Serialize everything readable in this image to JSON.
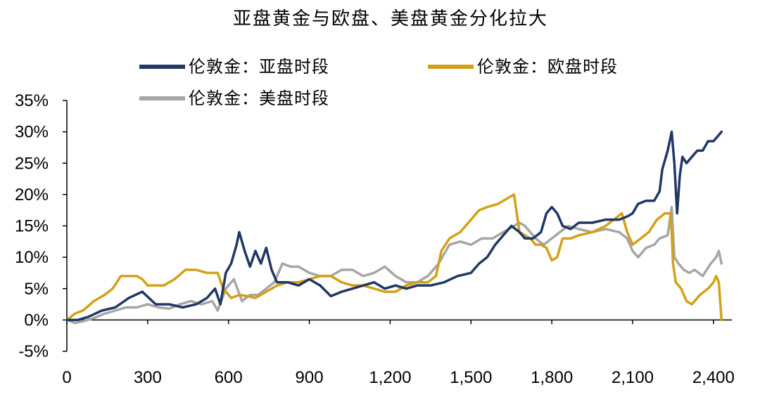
{
  "chart_data": {
    "type": "line",
    "title": "亚盘黄金与欧盘、美盘黄金分化拉大",
    "xlabel": "",
    "ylabel": "",
    "xlim": [
      0,
      2450
    ],
    "ylim": [
      -5,
      35
    ],
    "x_ticks": [
      {
        "value": 0,
        "label": "0"
      },
      {
        "value": 300,
        "label": "300"
      },
      {
        "value": 600,
        "label": "600"
      },
      {
        "value": 900,
        "label": "900"
      },
      {
        "value": 1200,
        "label": "1,200"
      },
      {
        "value": 1500,
        "label": "1,500"
      },
      {
        "value": 1800,
        "label": "1,800"
      },
      {
        "value": 2100,
        "label": "2,100"
      },
      {
        "value": 2400,
        "label": "2,400"
      }
    ],
    "y_ticks": [
      {
        "value": 35,
        "label": "35%"
      },
      {
        "value": 30,
        "label": "30%"
      },
      {
        "value": 25,
        "label": "25%"
      },
      {
        "value": 20,
        "label": "20%"
      },
      {
        "value": 15,
        "label": "15%"
      },
      {
        "value": 10,
        "label": "10%"
      },
      {
        "value": 5,
        "label": "5%"
      },
      {
        "value": 0,
        "label": "0%"
      },
      {
        "value": -5,
        "label": "-5%"
      }
    ],
    "grid": false,
    "legend_position": "top",
    "series": [
      {
        "name": "伦敦金：亚盘时段",
        "color": "#1f3864",
        "points": [
          [
            0,
            0
          ],
          [
            40,
            0
          ],
          [
            80,
            0.5
          ],
          [
            130,
            1.5
          ],
          [
            180,
            2
          ],
          [
            230,
            3.5
          ],
          [
            280,
            4.5
          ],
          [
            330,
            2.5
          ],
          [
            380,
            2.5
          ],
          [
            430,
            2
          ],
          [
            480,
            2.5
          ],
          [
            520,
            3.5
          ],
          [
            550,
            5
          ],
          [
            570,
            2.5
          ],
          [
            590,
            7.5
          ],
          [
            610,
            9
          ],
          [
            630,
            12
          ],
          [
            640,
            14
          ],
          [
            660,
            11
          ],
          [
            680,
            8.5
          ],
          [
            700,
            11
          ],
          [
            720,
            9
          ],
          [
            740,
            11.5
          ],
          [
            760,
            8
          ],
          [
            780,
            6
          ],
          [
            820,
            6
          ],
          [
            860,
            5.5
          ],
          [
            900,
            6.5
          ],
          [
            940,
            5.5
          ],
          [
            980,
            3.8
          ],
          [
            1020,
            4.5
          ],
          [
            1060,
            5
          ],
          [
            1100,
            5.5
          ],
          [
            1140,
            6
          ],
          [
            1180,
            5
          ],
          [
            1220,
            5.5
          ],
          [
            1260,
            5
          ],
          [
            1300,
            5.5
          ],
          [
            1350,
            5.5
          ],
          [
            1400,
            6
          ],
          [
            1450,
            7
          ],
          [
            1500,
            7.5
          ],
          [
            1530,
            9
          ],
          [
            1560,
            10
          ],
          [
            1590,
            12
          ],
          [
            1620,
            13.5
          ],
          [
            1650,
            15
          ],
          [
            1680,
            14
          ],
          [
            1700,
            13
          ],
          [
            1730,
            13
          ],
          [
            1760,
            14
          ],
          [
            1780,
            17
          ],
          [
            1800,
            18
          ],
          [
            1820,
            17
          ],
          [
            1840,
            15
          ],
          [
            1870,
            14.5
          ],
          [
            1900,
            15.5
          ],
          [
            1950,
            15.5
          ],
          [
            2000,
            16
          ],
          [
            2050,
            16
          ],
          [
            2080,
            16.5
          ],
          [
            2100,
            17
          ],
          [
            2120,
            18.5
          ],
          [
            2150,
            19
          ],
          [
            2180,
            19
          ],
          [
            2200,
            20.5
          ],
          [
            2210,
            24
          ],
          [
            2230,
            27
          ],
          [
            2245,
            30
          ],
          [
            2255,
            25
          ],
          [
            2265,
            17
          ],
          [
            2275,
            23
          ],
          [
            2285,
            26
          ],
          [
            2300,
            25
          ],
          [
            2320,
            26
          ],
          [
            2340,
            27
          ],
          [
            2360,
            27
          ],
          [
            2380,
            28.5
          ],
          [
            2400,
            28.5
          ],
          [
            2420,
            29.5
          ],
          [
            2430,
            30
          ]
        ]
      },
      {
        "name": "伦敦金：欧盘时段",
        "color": "#d4a017",
        "points": [
          [
            0,
            0
          ],
          [
            30,
            1
          ],
          [
            60,
            1.5
          ],
          [
            100,
            3
          ],
          [
            140,
            4
          ],
          [
            170,
            5
          ],
          [
            200,
            7
          ],
          [
            230,
            7
          ],
          [
            260,
            7
          ],
          [
            280,
            6.5
          ],
          [
            300,
            5.5
          ],
          [
            330,
            5.5
          ],
          [
            360,
            5.5
          ],
          [
            400,
            6.5
          ],
          [
            440,
            8
          ],
          [
            480,
            8
          ],
          [
            520,
            7.5
          ],
          [
            560,
            7.5
          ],
          [
            580,
            5
          ],
          [
            610,
            3.5
          ],
          [
            640,
            4
          ],
          [
            670,
            3.8
          ],
          [
            700,
            3.5
          ],
          [
            740,
            4.5
          ],
          [
            780,
            5.5
          ],
          [
            820,
            6
          ],
          [
            860,
            6
          ],
          [
            900,
            6.5
          ],
          [
            940,
            7
          ],
          [
            980,
            7
          ],
          [
            1020,
            6
          ],
          [
            1060,
            5.5
          ],
          [
            1100,
            5.5
          ],
          [
            1140,
            5
          ],
          [
            1180,
            4.5
          ],
          [
            1220,
            4.5
          ],
          [
            1260,
            5.5
          ],
          [
            1300,
            6
          ],
          [
            1340,
            6
          ],
          [
            1370,
            7
          ],
          [
            1390,
            11
          ],
          [
            1420,
            13
          ],
          [
            1460,
            14
          ],
          [
            1500,
            16
          ],
          [
            1530,
            17.5
          ],
          [
            1560,
            18
          ],
          [
            1600,
            18.5
          ],
          [
            1640,
            19.5
          ],
          [
            1660,
            20
          ],
          [
            1680,
            14
          ],
          [
            1700,
            13.5
          ],
          [
            1720,
            13
          ],
          [
            1740,
            12
          ],
          [
            1760,
            12
          ],
          [
            1780,
            11.5
          ],
          [
            1790,
            10.5
          ],
          [
            1800,
            9.5
          ],
          [
            1820,
            10
          ],
          [
            1840,
            13
          ],
          [
            1870,
            13
          ],
          [
            1900,
            13.5
          ],
          [
            1950,
            14
          ],
          [
            2000,
            15
          ],
          [
            2030,
            16
          ],
          [
            2060,
            17
          ],
          [
            2080,
            14
          ],
          [
            2100,
            12
          ],
          [
            2130,
            13
          ],
          [
            2160,
            14
          ],
          [
            2190,
            16
          ],
          [
            2220,
            17
          ],
          [
            2240,
            17
          ],
          [
            2245,
            14
          ],
          [
            2250,
            9
          ],
          [
            2260,
            6
          ],
          [
            2280,
            5
          ],
          [
            2300,
            3
          ],
          [
            2320,
            2.5
          ],
          [
            2350,
            4
          ],
          [
            2380,
            5
          ],
          [
            2400,
            6
          ],
          [
            2410,
            7
          ],
          [
            2420,
            6
          ],
          [
            2425,
            3
          ],
          [
            2430,
            0
          ]
        ]
      },
      {
        "name": "伦敦金：美盘时段",
        "color": "#a6a6a6",
        "points": [
          [
            0,
            0
          ],
          [
            30,
            -0.5
          ],
          [
            60,
            -0.2
          ],
          [
            100,
            0.3
          ],
          [
            140,
            1
          ],
          [
            180,
            1.5
          ],
          [
            220,
            2
          ],
          [
            260,
            2
          ],
          [
            300,
            2.5
          ],
          [
            340,
            2
          ],
          [
            380,
            1.8
          ],
          [
            420,
            2.5
          ],
          [
            460,
            3
          ],
          [
            500,
            2.5
          ],
          [
            540,
            3
          ],
          [
            560,
            1.5
          ],
          [
            590,
            5
          ],
          [
            620,
            6.5
          ],
          [
            650,
            3
          ],
          [
            680,
            4
          ],
          [
            710,
            4
          ],
          [
            740,
            5
          ],
          [
            770,
            6
          ],
          [
            800,
            9
          ],
          [
            830,
            8.5
          ],
          [
            860,
            8.5
          ],
          [
            900,
            7.5
          ],
          [
            940,
            7
          ],
          [
            980,
            7
          ],
          [
            1020,
            8
          ],
          [
            1060,
            8
          ],
          [
            1100,
            7
          ],
          [
            1140,
            7.5
          ],
          [
            1180,
            8.5
          ],
          [
            1220,
            7
          ],
          [
            1260,
            6
          ],
          [
            1300,
            6
          ],
          [
            1340,
            7
          ],
          [
            1380,
            9
          ],
          [
            1420,
            12
          ],
          [
            1460,
            12.5
          ],
          [
            1500,
            12
          ],
          [
            1540,
            13
          ],
          [
            1580,
            13
          ],
          [
            1620,
            14
          ],
          [
            1660,
            15
          ],
          [
            1680,
            15.5
          ],
          [
            1700,
            15
          ],
          [
            1740,
            13
          ],
          [
            1770,
            12
          ],
          [
            1800,
            13
          ],
          [
            1830,
            14
          ],
          [
            1860,
            15
          ],
          [
            1900,
            14.5
          ],
          [
            1950,
            14
          ],
          [
            2000,
            14.5
          ],
          [
            2050,
            14
          ],
          [
            2080,
            13
          ],
          [
            2100,
            11
          ],
          [
            2120,
            10
          ],
          [
            2150,
            11.5
          ],
          [
            2180,
            12
          ],
          [
            2200,
            13
          ],
          [
            2230,
            13.5
          ],
          [
            2245,
            18
          ],
          [
            2255,
            10
          ],
          [
            2270,
            9
          ],
          [
            2290,
            8
          ],
          [
            2310,
            7.5
          ],
          [
            2330,
            8
          ],
          [
            2360,
            7
          ],
          [
            2390,
            9
          ],
          [
            2410,
            10
          ],
          [
            2420,
            11
          ],
          [
            2430,
            9
          ]
        ]
      }
    ]
  }
}
